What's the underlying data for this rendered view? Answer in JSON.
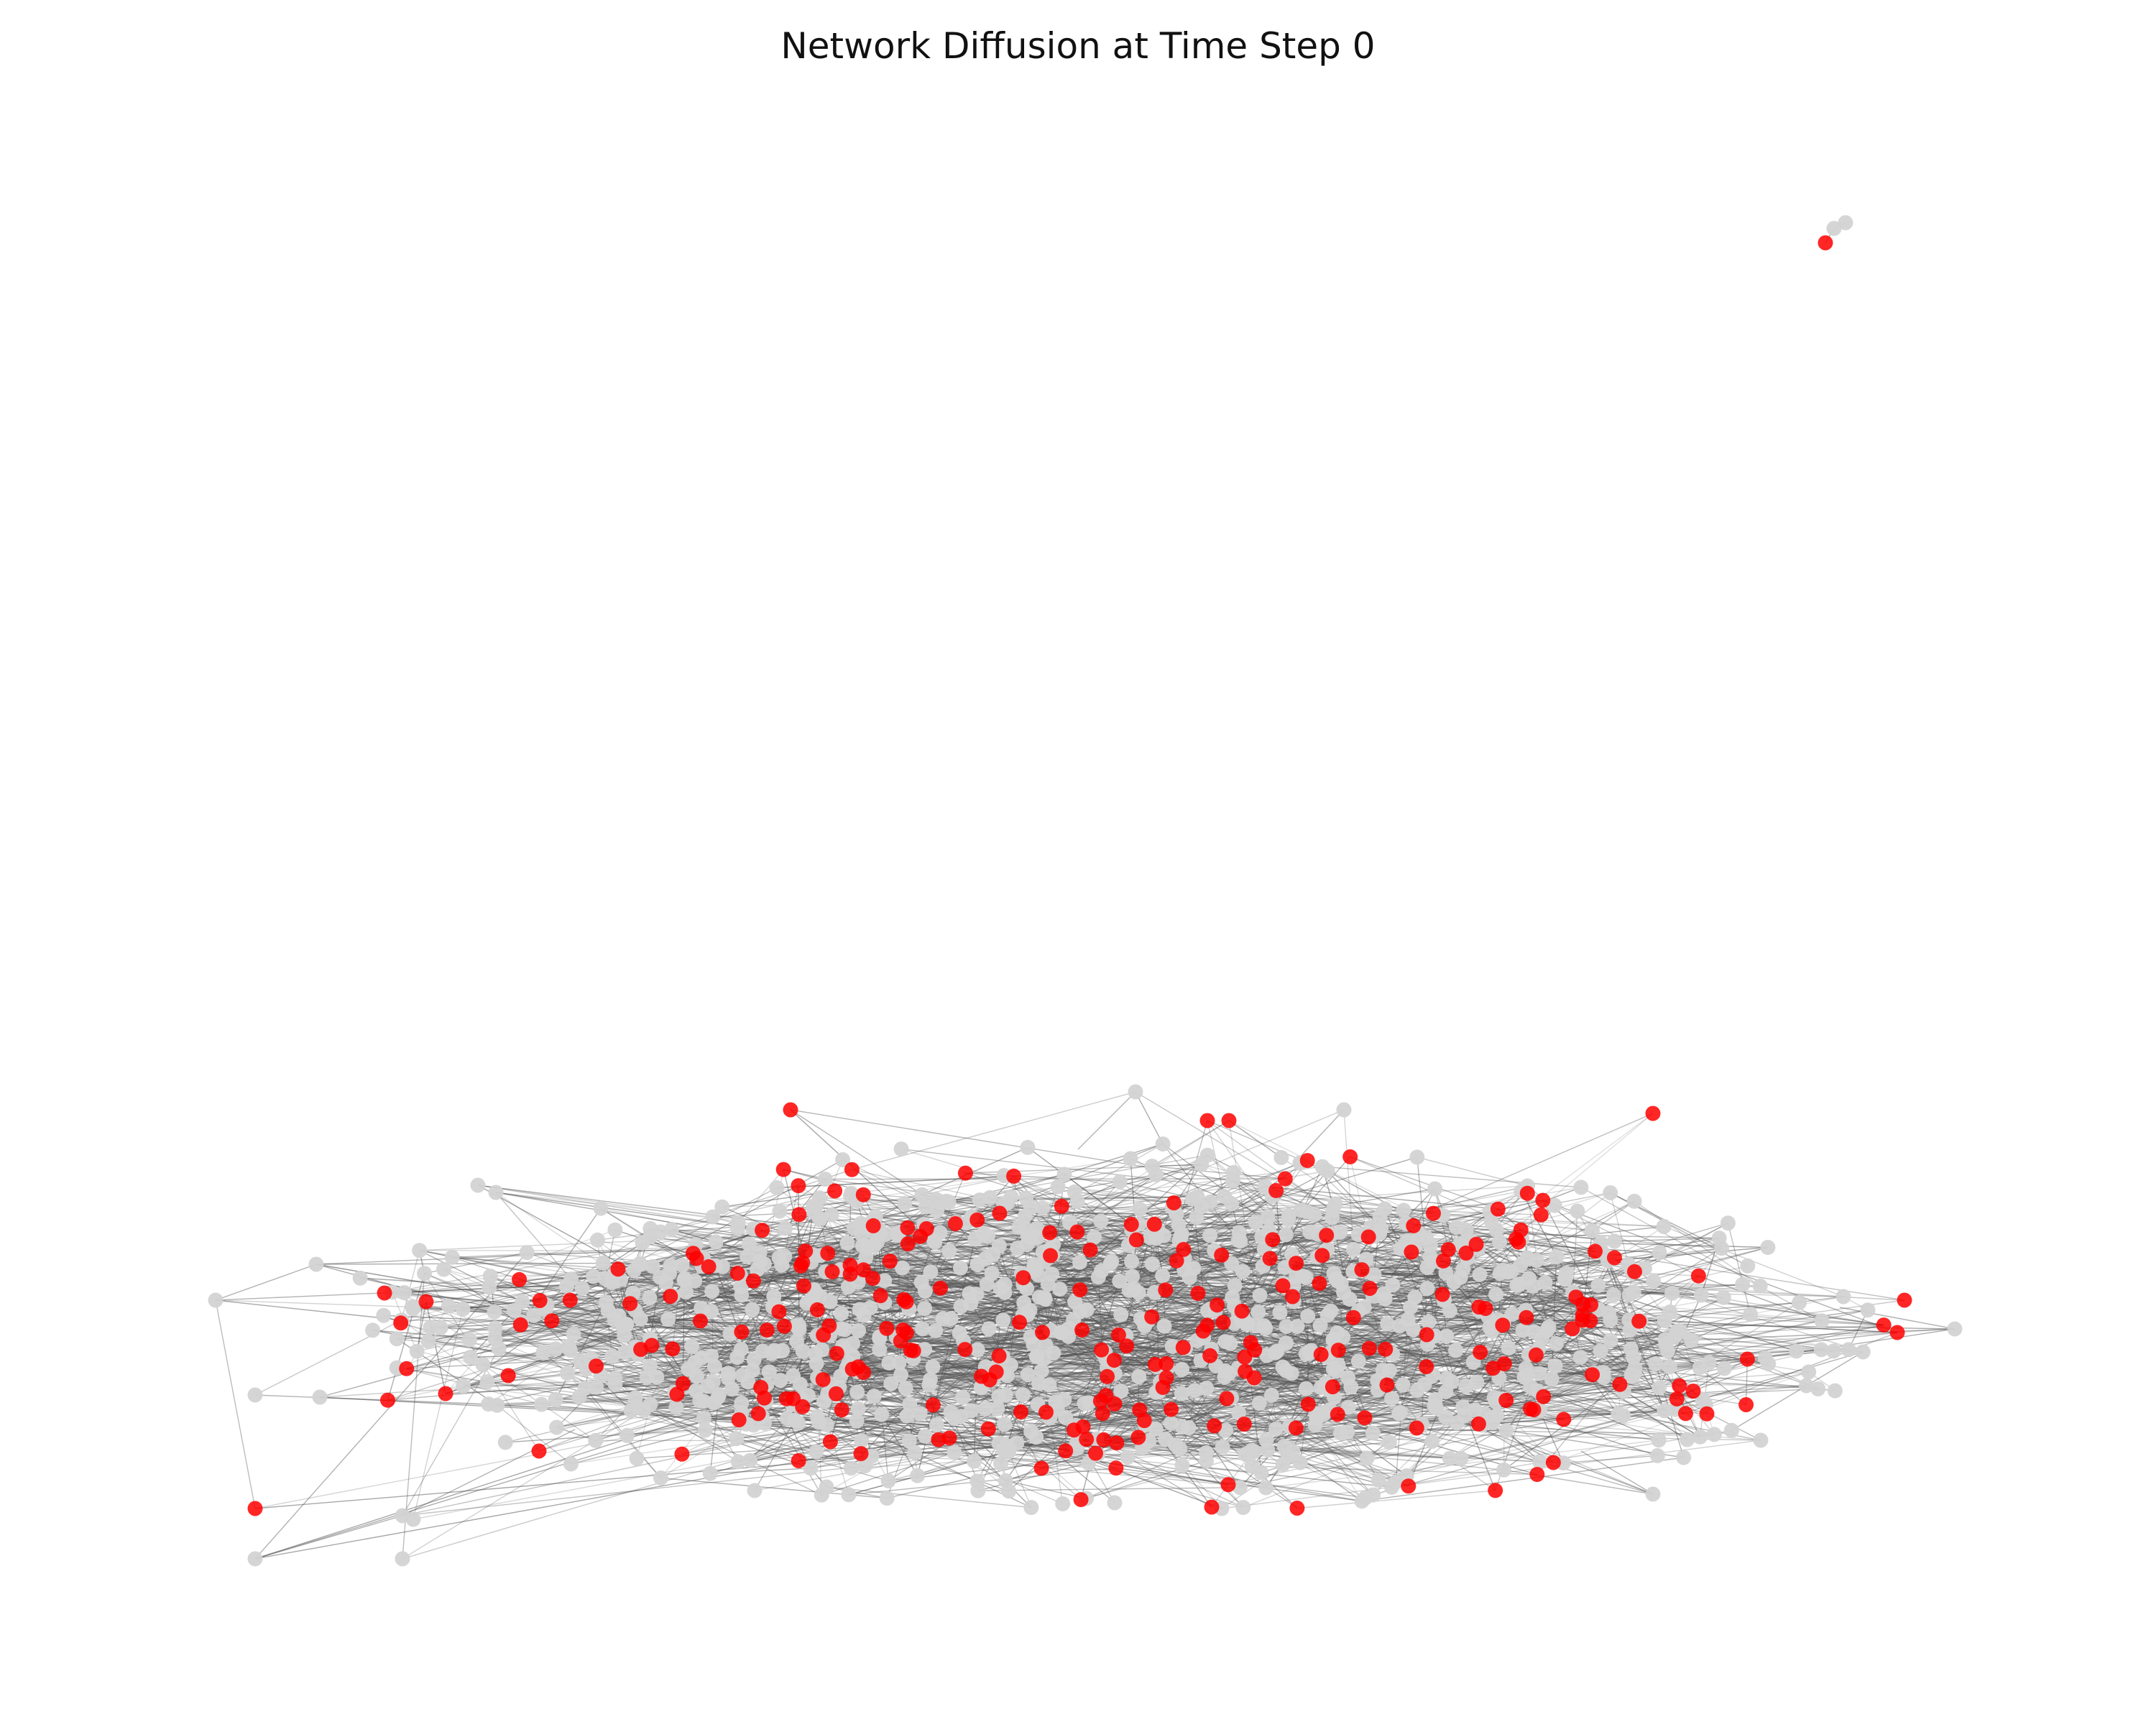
{
  "figure": {
    "title": "Network Diffusion at Time Step 0"
  },
  "colors": {
    "background": "#ffffff",
    "inactive_node": "#d3d3d3",
    "active_node": "#ff0000",
    "edge": "#555555"
  },
  "chart_data": {
    "type": "network",
    "title": "Network Diffusion at Time Step 0",
    "axes": "off",
    "node_states": [
      "inactive",
      "active"
    ]
  }
}
